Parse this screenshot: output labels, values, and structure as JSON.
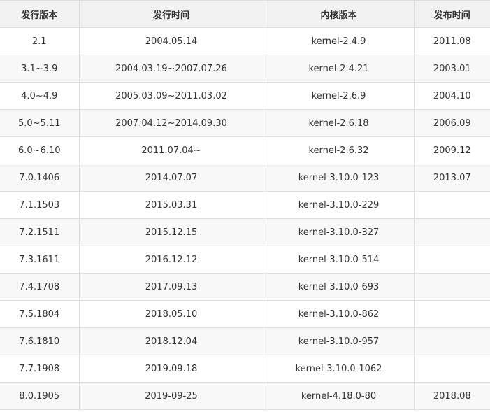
{
  "table": {
    "headers": [
      "发行版本",
      "发行时间",
      "内核版本",
      "发布时间"
    ],
    "rows": [
      [
        "2.1",
        "2004.05.14",
        "kernel-2.4.9",
        "2011.08"
      ],
      [
        "3.1~3.9",
        "2004.03.19~2007.07.26",
        "kernel-2.4.21",
        "2003.01"
      ],
      [
        "4.0~4.9",
        "2005.03.09~2011.03.02",
        "kernel-2.6.9",
        "2004.10"
      ],
      [
        "5.0~5.11",
        "2007.04.12~2014.09.30",
        "kernel-2.6.18",
        "2006.09"
      ],
      [
        "6.0~6.10",
        "2011.07.04~",
        "kernel-2.6.32",
        "2009.12"
      ],
      [
        "7.0.1406",
        "2014.07.07",
        "kernel-3.10.0-123",
        "2013.07"
      ],
      [
        "7.1.1503",
        "2015.03.31",
        "kernel-3.10.0-229",
        ""
      ],
      [
        "7.2.1511",
        "2015.12.15",
        "kernel-3.10.0-327",
        ""
      ],
      [
        "7.3.1611",
        "2016.12.12",
        "kernel-3.10.0-514",
        ""
      ],
      [
        "7.4.1708",
        "2017.09.13",
        "kernel-3.10.0-693",
        ""
      ],
      [
        "7.5.1804",
        "2018.05.10",
        "kernel-3.10.0-862",
        ""
      ],
      [
        "7.6.1810",
        "2018.12.04",
        "kernel-3.10.0-957",
        ""
      ],
      [
        "7.7.1908",
        "2019.09.18",
        "kernel-3.10.0-1062",
        ""
      ],
      [
        "8.0.1905",
        "2019-09-25",
        "kernel-4.18.0-80",
        "2018.08"
      ]
    ]
  }
}
